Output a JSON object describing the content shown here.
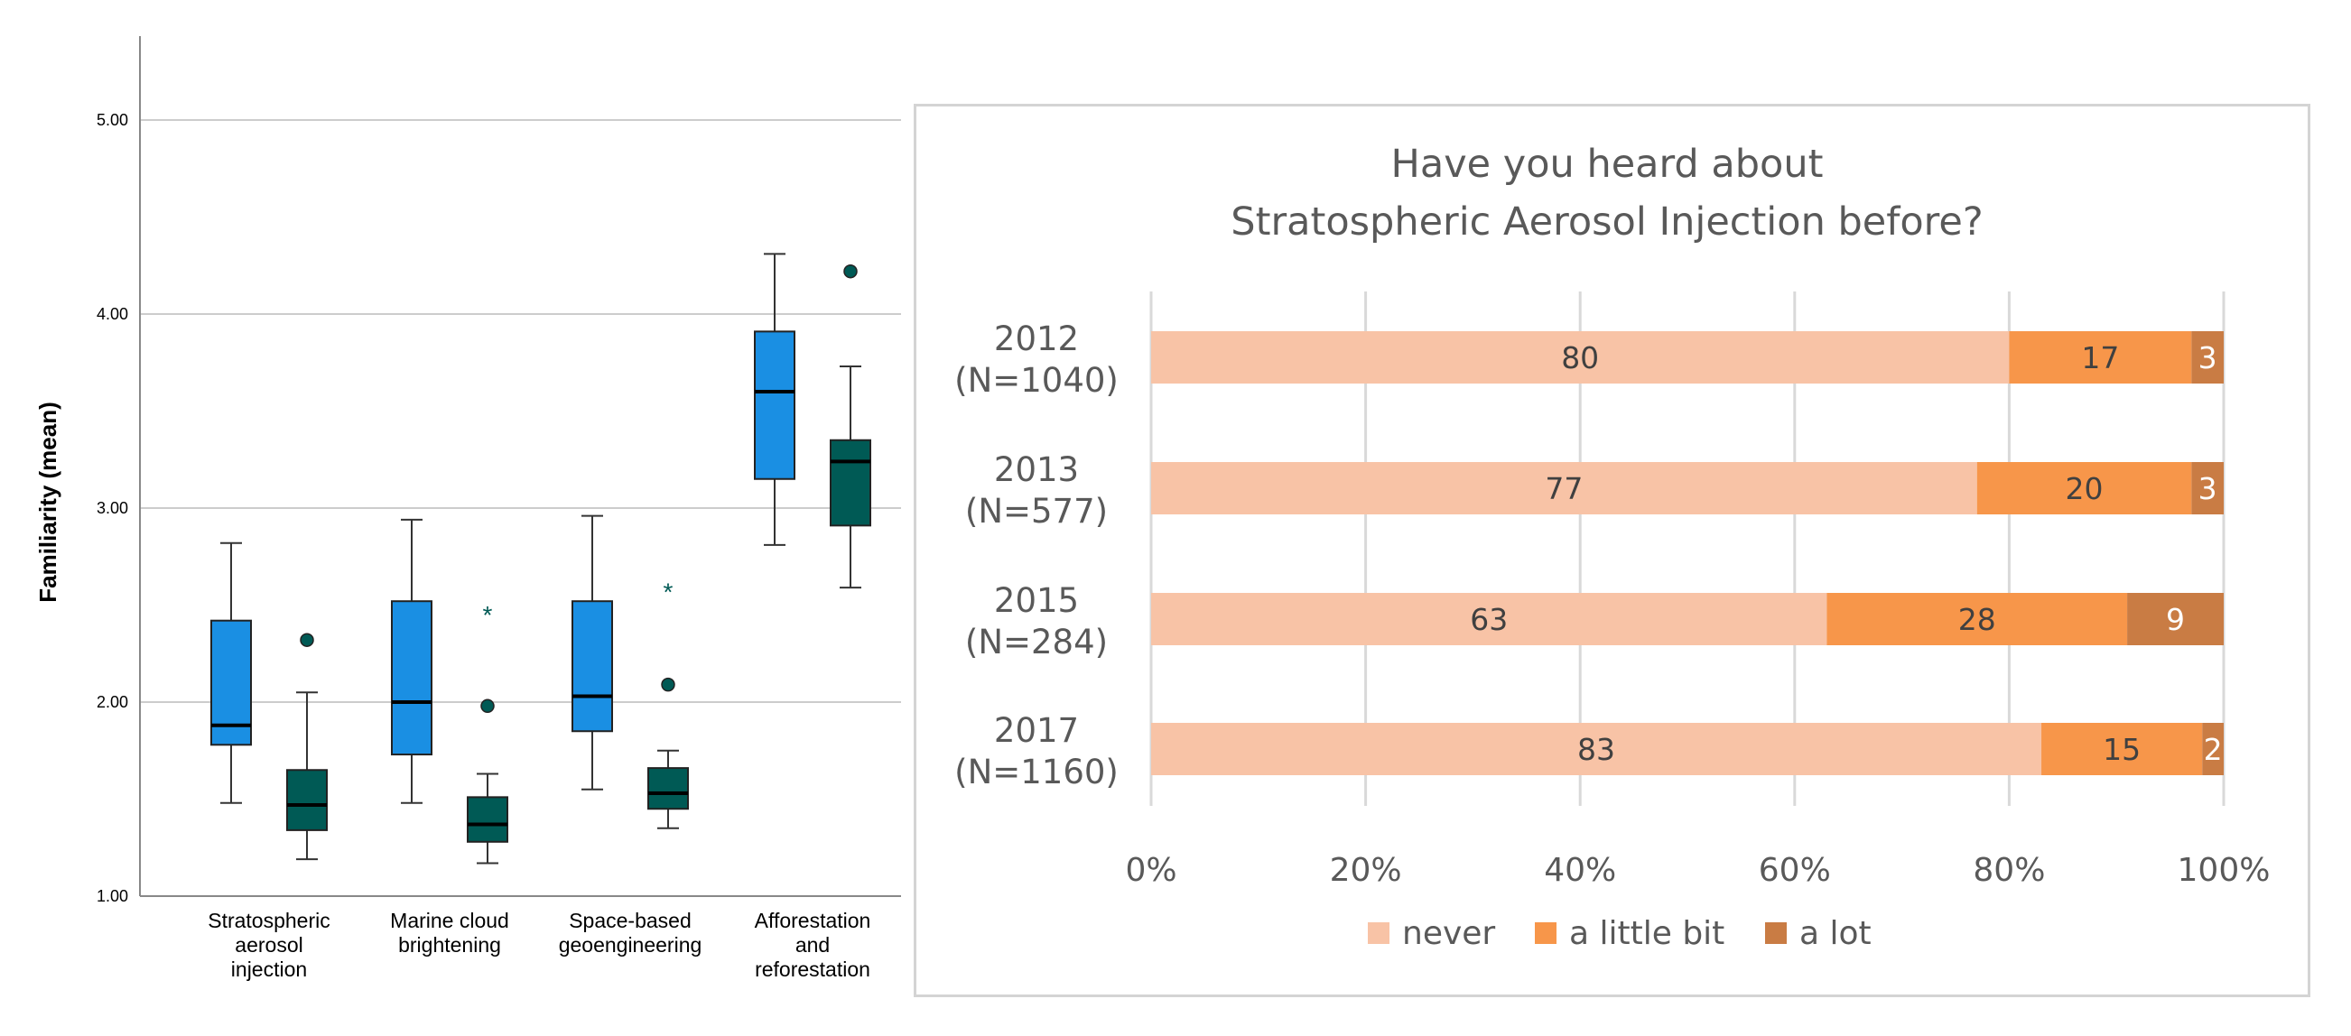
{
  "chart_data": [
    {
      "type": "box",
      "ylabel": "Familiarity (mean)",
      "ylim": [
        1.0,
        5.0
      ],
      "yticks": [
        "1.00",
        "2.00",
        "3.00",
        "4.00",
        "5.00"
      ],
      "categories": [
        "Stratospheric aerosol injection",
        "Marine cloud brightening",
        "Space-based geoengineering",
        "Afforestation and reforestation"
      ],
      "category_lines": [
        [
          "Stratospheric",
          "aerosol",
          "injection"
        ],
        [
          "Marine cloud",
          "brightening"
        ],
        [
          "Space-based",
          "geoengineering"
        ],
        [
          "Afforestation",
          "and",
          "reforestation"
        ]
      ],
      "grid": true,
      "series": [
        {
          "color": "#1a8fe3",
          "boxes": [
            {
              "min": 1.48,
              "q1": 1.78,
              "median": 1.88,
              "q3": 2.42,
              "max": 2.82,
              "outliers": [],
              "extremes": []
            },
            {
              "min": 1.48,
              "q1": 1.73,
              "median": 2.0,
              "q3": 2.52,
              "max": 2.94,
              "outliers": [],
              "extremes": []
            },
            {
              "min": 1.55,
              "q1": 1.85,
              "median": 2.03,
              "q3": 2.52,
              "max": 2.96,
              "outliers": [],
              "extremes": []
            },
            {
              "min": 2.81,
              "q1": 3.15,
              "median": 3.6,
              "q3": 3.91,
              "max": 4.31,
              "outliers": [],
              "extremes": []
            }
          ]
        },
        {
          "color": "#005a55",
          "boxes": [
            {
              "min": 1.19,
              "q1": 1.34,
              "median": 1.47,
              "q3": 1.65,
              "max": 2.05,
              "outliers": [
                2.32
              ],
              "extremes": []
            },
            {
              "min": 1.17,
              "q1": 1.28,
              "median": 1.37,
              "q3": 1.51,
              "max": 1.63,
              "outliers": [
                1.98
              ],
              "extremes": [
                2.46
              ]
            },
            {
              "min": 1.35,
              "q1": 1.45,
              "median": 1.53,
              "q3": 1.66,
              "max": 1.75,
              "outliers": [
                2.09
              ],
              "extremes": [
                2.58
              ]
            },
            {
              "min": 2.59,
              "q1": 2.91,
              "median": 3.24,
              "q3": 3.35,
              "max": 3.73,
              "outliers": [
                4.22
              ],
              "extremes": []
            }
          ]
        }
      ]
    },
    {
      "type": "stacked_bar_horizontal",
      "title_lines": [
        "Have you heard about",
        "Stratospheric Aerosol Injection before?"
      ],
      "categories": [
        {
          "year": "2012",
          "n": "(N=1040)"
        },
        {
          "year": "2013",
          "n": "(N=577)"
        },
        {
          "year": "2015",
          "n": "(N=284)"
        },
        {
          "year": "2017",
          "n": "(N=1160)"
        }
      ],
      "xlim": [
        0,
        100
      ],
      "xticks": [
        "0%",
        "20%",
        "40%",
        "60%",
        "80%",
        "100%"
      ],
      "grid": true,
      "series": [
        {
          "name": "never",
          "color": "#f8c3a6",
          "values": [
            80,
            77,
            63,
            83
          ]
        },
        {
          "name": "a little bit",
          "color": "#f7964a",
          "values": [
            17,
            20,
            28,
            15
          ]
        },
        {
          "name": "a lot",
          "color": "#c97c44",
          "values": [
            3,
            3,
            9,
            2
          ]
        }
      ],
      "legend_position": "bottom"
    }
  ]
}
